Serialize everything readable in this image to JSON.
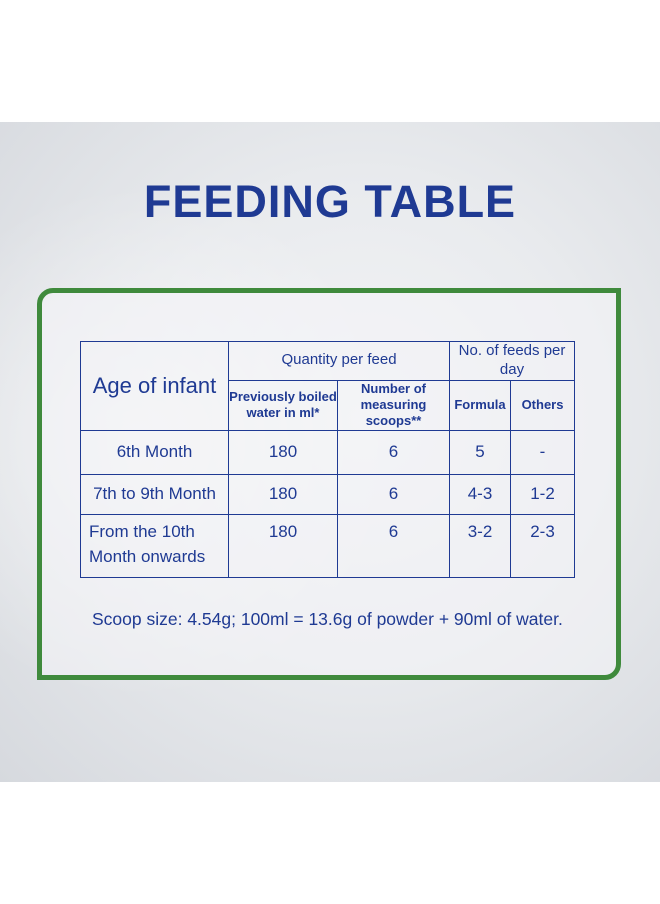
{
  "title": "FEEDING TABLE",
  "table": {
    "age_header": "Age of infant",
    "quantity_header": "Quantity per feed",
    "feeds_header": "No. of feeds per day",
    "water_header_line1": "Previously boiled",
    "water_header_line2": "water in ml*",
    "scoops_header_line1": "Number of",
    "scoops_header_line2": "measuring scoops**",
    "formula_header": "Formula",
    "others_header": "Others",
    "rows": [
      {
        "age_line1": "6th Month",
        "age_line2": "",
        "water": "180",
        "scoops": "6",
        "formula": "5",
        "others": "-"
      },
      {
        "age_line1": "7th to 9th Month",
        "age_line2": "",
        "water": "180",
        "scoops": "6",
        "formula": "4-3",
        "others": "1-2"
      },
      {
        "age_line1": "From the 10th",
        "age_line2": "Month onwards",
        "water": "180",
        "scoops": "6",
        "formula": "3-2",
        "others": "2-3"
      }
    ]
  },
  "note": "Scoop size: 4.54g; 100ml = 13.6g of  powder + 90ml of water.",
  "colors": {
    "text_blue": "#1f3a93",
    "frame_green": "#3f8a3c"
  }
}
